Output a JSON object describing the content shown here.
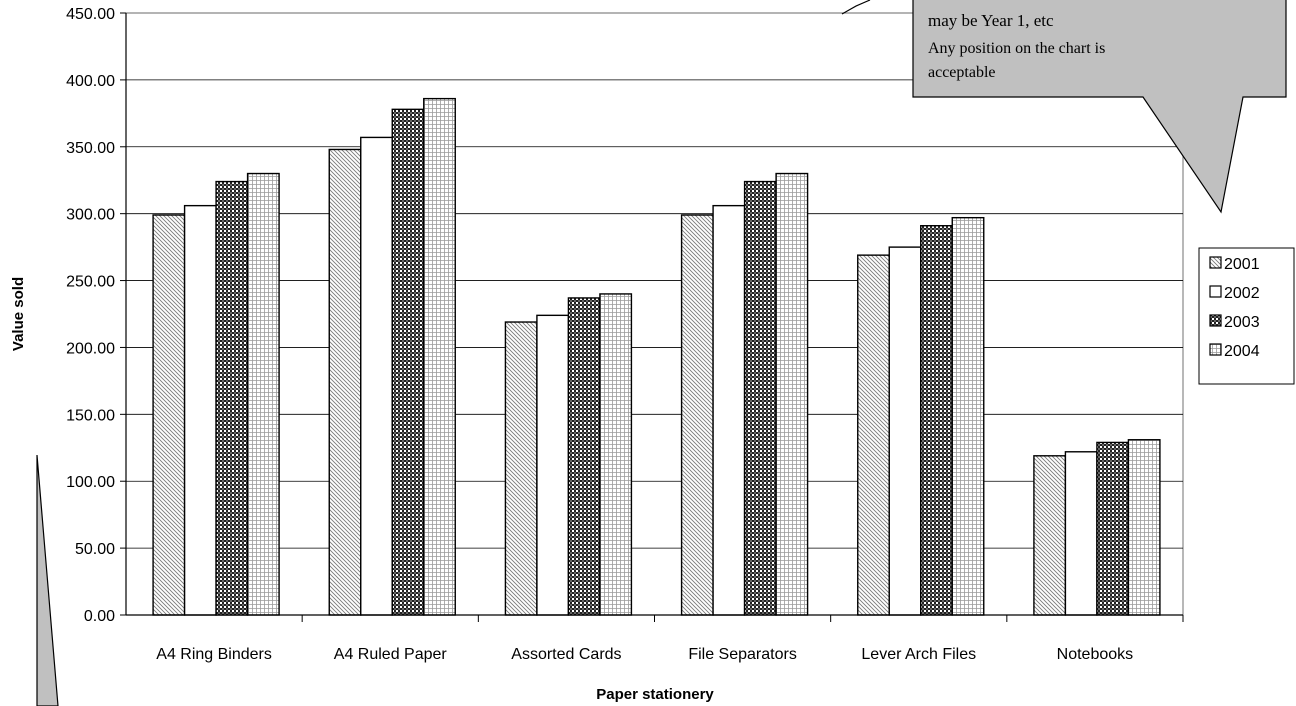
{
  "chart_data": {
    "type": "bar",
    "title": "",
    "xlabel": "Paper stationery",
    "ylabel": "Value sold",
    "ylim": [
      0,
      450
    ],
    "ytick_step": 50,
    "grid": true,
    "legend_position": "right",
    "categories": [
      "A4 Ring Binders",
      "A4 Ruled Paper",
      "Assorted Cards",
      "File Separators",
      "Lever Arch Files",
      "Notebooks"
    ],
    "series": [
      {
        "name": "2001",
        "pattern": "diagonal-hatch",
        "values": [
          299,
          348,
          219,
          299,
          269,
          119
        ]
      },
      {
        "name": "2002",
        "pattern": "plain-white",
        "values": [
          306,
          357,
          224,
          306,
          275,
          122
        ]
      },
      {
        "name": "2003",
        "pattern": "dark-dots",
        "values": [
          324,
          378,
          237,
          324,
          291,
          129
        ]
      },
      {
        "name": "2004",
        "pattern": "fine-grid",
        "values": [
          330,
          386,
          240,
          330,
          297,
          131
        ]
      }
    ]
  },
  "callouts": {
    "top_right": [
      "may be Year 1, etc",
      "Any position on the chart is",
      "acceptable"
    ]
  },
  "colors": {
    "callout_fill": "#c0c0c0",
    "gridline": "#000000"
  }
}
